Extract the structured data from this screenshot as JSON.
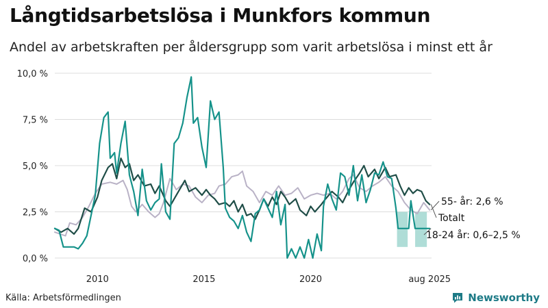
{
  "title": "Långtidsarbetslösa i Munkfors kommun",
  "subtitle": "Andel av arbetskraften per åldersgrupp som varit arbetslösa i minst ett år",
  "source": "Källa: Arbetsförmedlingen",
  "brand": {
    "name": "Newsworthy",
    "icon": "newsworthy-logo-icon"
  },
  "colors": {
    "youth": "#15928a",
    "total": "#1f4d47",
    "older": "#b9b2c6",
    "band": "#a6d9d3",
    "grid": "#dcdcdc",
    "axis_text": "#222222",
    "brand": "#1d7a86"
  },
  "chart_data": {
    "type": "line",
    "x_unit": "year",
    "xlim": [
      2008.0,
      2025.67
    ],
    "ylim": [
      0,
      10
    ],
    "x_ticks": [
      {
        "value": 2010,
        "label": "2010"
      },
      {
        "value": 2015,
        "label": "2015"
      },
      {
        "value": 2020,
        "label": "2020"
      },
      {
        "value": 2025.58,
        "label": "aug 2025"
      }
    ],
    "y_ticks": [
      {
        "value": 0,
        "label": "0,0 %"
      },
      {
        "value": 2.5,
        "label": "2,5 %"
      },
      {
        "value": 5,
        "label": "5,0 %"
      },
      {
        "value": 7.5,
        "label": "7,5 %"
      },
      {
        "value": 10,
        "label": "10,0 %"
      }
    ],
    "grid": true,
    "legend": "direct labels at line ends (right)",
    "series": [
      {
        "key": "older",
        "name": "55- år: 2,6 %",
        "color_key": "older",
        "points": [
          [
            2008.0,
            1.4
          ],
          [
            2008.5,
            1.2
          ],
          [
            2008.7,
            1.9
          ],
          [
            2009.0,
            1.8
          ],
          [
            2009.3,
            2.2
          ],
          [
            2009.6,
            2.8
          ],
          [
            2009.9,
            3.5
          ],
          [
            2010.2,
            4.0
          ],
          [
            2010.6,
            4.1
          ],
          [
            2010.9,
            4.0
          ],
          [
            2011.2,
            4.2
          ],
          [
            2011.4,
            3.7
          ],
          [
            2011.6,
            2.8
          ],
          [
            2011.8,
            2.5
          ],
          [
            2012.1,
            2.9
          ],
          [
            2012.4,
            2.5
          ],
          [
            2012.7,
            2.2
          ],
          [
            2012.9,
            2.4
          ],
          [
            2013.1,
            3.0
          ],
          [
            2013.4,
            4.3
          ],
          [
            2013.7,
            3.7
          ],
          [
            2014.0,
            4.0
          ],
          [
            2014.3,
            3.9
          ],
          [
            2014.6,
            3.3
          ],
          [
            2014.9,
            3.0
          ],
          [
            2015.2,
            3.4
          ],
          [
            2015.5,
            3.5
          ],
          [
            2015.7,
            3.9
          ],
          [
            2016.0,
            4.0
          ],
          [
            2016.3,
            4.4
          ],
          [
            2016.6,
            4.5
          ],
          [
            2016.8,
            4.7
          ],
          [
            2017.0,
            3.9
          ],
          [
            2017.3,
            3.6
          ],
          [
            2017.6,
            3.0
          ],
          [
            2017.9,
            3.6
          ],
          [
            2018.2,
            3.4
          ],
          [
            2018.5,
            3.9
          ],
          [
            2018.8,
            3.4
          ],
          [
            2019.1,
            3.5
          ],
          [
            2019.4,
            3.8
          ],
          [
            2019.7,
            3.2
          ],
          [
            2020.0,
            3.4
          ],
          [
            2020.3,
            3.5
          ],
          [
            2020.6,
            3.4
          ],
          [
            2020.9,
            3.5
          ],
          [
            2021.2,
            3.2
          ],
          [
            2021.5,
            3.6
          ],
          [
            2021.8,
            4.3
          ],
          [
            2022.0,
            4.5
          ],
          [
            2022.3,
            3.8
          ],
          [
            2022.6,
            3.6
          ],
          [
            2022.9,
            3.9
          ],
          [
            2023.2,
            4.1
          ],
          [
            2023.5,
            4.4
          ],
          [
            2023.8,
            3.9
          ],
          [
            2024.1,
            3.6
          ],
          [
            2024.4,
            3.0
          ],
          [
            2024.7,
            2.6
          ],
          [
            2025.0,
            2.4
          ],
          [
            2025.3,
            3.0
          ],
          [
            2025.58,
            2.6
          ]
        ]
      },
      {
        "key": "total",
        "name": "Totalt",
        "color_key": "total",
        "points": [
          [
            2008.0,
            1.6
          ],
          [
            2008.3,
            1.4
          ],
          [
            2008.6,
            1.6
          ],
          [
            2008.9,
            1.3
          ],
          [
            2009.1,
            1.6
          ],
          [
            2009.4,
            2.7
          ],
          [
            2009.7,
            2.5
          ],
          [
            2010.0,
            3.3
          ],
          [
            2010.2,
            4.2
          ],
          [
            2010.5,
            4.9
          ],
          [
            2010.7,
            5.1
          ],
          [
            2010.9,
            4.3
          ],
          [
            2011.1,
            5.4
          ],
          [
            2011.3,
            4.9
          ],
          [
            2011.5,
            5.1
          ],
          [
            2011.7,
            4.2
          ],
          [
            2011.9,
            4.5
          ],
          [
            2012.2,
            3.9
          ],
          [
            2012.5,
            4.0
          ],
          [
            2012.7,
            3.5
          ],
          [
            2012.9,
            3.9
          ],
          [
            2013.2,
            3.1
          ],
          [
            2013.4,
            2.8
          ],
          [
            2013.6,
            3.2
          ],
          [
            2013.9,
            3.8
          ],
          [
            2014.1,
            4.2
          ],
          [
            2014.3,
            3.6
          ],
          [
            2014.6,
            3.8
          ],
          [
            2014.9,
            3.4
          ],
          [
            2015.1,
            3.7
          ],
          [
            2015.3,
            3.4
          ],
          [
            2015.5,
            3.2
          ],
          [
            2015.7,
            2.9
          ],
          [
            2016.0,
            3.0
          ],
          [
            2016.2,
            2.8
          ],
          [
            2016.4,
            3.1
          ],
          [
            2016.6,
            2.5
          ],
          [
            2016.8,
            2.9
          ],
          [
            2017.0,
            2.3
          ],
          [
            2017.2,
            2.4
          ],
          [
            2017.4,
            2.1
          ],
          [
            2017.6,
            2.6
          ],
          [
            2017.8,
            3.2
          ],
          [
            2018.0,
            2.8
          ],
          [
            2018.2,
            3.3
          ],
          [
            2018.4,
            2.9
          ],
          [
            2018.6,
            3.6
          ],
          [
            2018.8,
            3.3
          ],
          [
            2019.0,
            2.9
          ],
          [
            2019.3,
            3.2
          ],
          [
            2019.5,
            2.6
          ],
          [
            2019.8,
            2.3
          ],
          [
            2020.0,
            2.8
          ],
          [
            2020.2,
            2.5
          ],
          [
            2020.5,
            2.9
          ],
          [
            2020.7,
            3.2
          ],
          [
            2021.0,
            3.6
          ],
          [
            2021.3,
            3.3
          ],
          [
            2021.5,
            3.0
          ],
          [
            2021.8,
            3.7
          ],
          [
            2022.0,
            4.1
          ],
          [
            2022.3,
            4.6
          ],
          [
            2022.5,
            5.0
          ],
          [
            2022.7,
            4.4
          ],
          [
            2023.0,
            4.8
          ],
          [
            2023.2,
            4.3
          ],
          [
            2023.5,
            4.9
          ],
          [
            2023.7,
            4.4
          ],
          [
            2024.0,
            4.5
          ],
          [
            2024.2,
            3.9
          ],
          [
            2024.4,
            3.4
          ],
          [
            2024.6,
            3.8
          ],
          [
            2024.8,
            3.5
          ],
          [
            2025.0,
            3.7
          ],
          [
            2025.2,
            3.6
          ],
          [
            2025.4,
            3.1
          ],
          [
            2025.58,
            2.9
          ]
        ]
      },
      {
        "key": "youth",
        "name": "18-24 år: 0,6–2,5 %",
        "color_key": "youth",
        "points": [
          [
            2008.0,
            1.6
          ],
          [
            2008.2,
            1.5
          ],
          [
            2008.4,
            0.6
          ],
          [
            2008.9,
            0.6
          ],
          [
            2009.1,
            0.5
          ],
          [
            2009.3,
            0.8
          ],
          [
            2009.5,
            1.2
          ],
          [
            2009.7,
            2.3
          ],
          [
            2009.9,
            3.4
          ],
          [
            2010.1,
            6.2
          ],
          [
            2010.3,
            7.6
          ],
          [
            2010.5,
            7.9
          ],
          [
            2010.6,
            5.4
          ],
          [
            2010.8,
            5.7
          ],
          [
            2010.9,
            4.6
          ],
          [
            2011.1,
            6.2
          ],
          [
            2011.3,
            7.4
          ],
          [
            2011.5,
            4.5
          ],
          [
            2011.7,
            3.6
          ],
          [
            2011.9,
            2.3
          ],
          [
            2012.1,
            4.8
          ],
          [
            2012.3,
            3.1
          ],
          [
            2012.5,
            2.6
          ],
          [
            2012.7,
            3.0
          ],
          [
            2012.9,
            3.2
          ],
          [
            2013.0,
            5.1
          ],
          [
            2013.2,
            2.5
          ],
          [
            2013.4,
            2.1
          ],
          [
            2013.6,
            6.2
          ],
          [
            2013.8,
            6.5
          ],
          [
            2014.0,
            7.3
          ],
          [
            2014.2,
            8.7
          ],
          [
            2014.4,
            9.8
          ],
          [
            2014.5,
            7.3
          ],
          [
            2014.7,
            7.6
          ],
          [
            2014.9,
            6.0
          ],
          [
            2015.1,
            4.9
          ],
          [
            2015.3,
            8.5
          ],
          [
            2015.5,
            7.5
          ],
          [
            2015.7,
            7.9
          ],
          [
            2015.9,
            4.9
          ],
          [
            2016.0,
            2.7
          ],
          [
            2016.2,
            2.2
          ],
          [
            2016.4,
            2.0
          ],
          [
            2016.6,
            1.6
          ],
          [
            2016.8,
            2.3
          ],
          [
            2017.0,
            1.4
          ],
          [
            2017.2,
            0.9
          ],
          [
            2017.4,
            2.4
          ],
          [
            2017.6,
            2.6
          ],
          [
            2017.8,
            3.2
          ],
          [
            2018.0,
            2.7
          ],
          [
            2018.2,
            2.2
          ],
          [
            2018.4,
            3.6
          ],
          [
            2018.6,
            1.8
          ],
          [
            2018.8,
            2.9
          ],
          [
            2018.9,
            0.0
          ],
          [
            2019.1,
            0.5
          ],
          [
            2019.3,
            0.0
          ],
          [
            2019.5,
            0.6
          ],
          [
            2019.7,
            0.0
          ],
          [
            2019.9,
            1.0
          ],
          [
            2020.1,
            0.0
          ],
          [
            2020.3,
            1.3
          ],
          [
            2020.5,
            0.4
          ],
          [
            2020.6,
            2.8
          ],
          [
            2020.8,
            4.0
          ],
          [
            2021.0,
            3.2
          ],
          [
            2021.2,
            2.6
          ],
          [
            2021.4,
            4.6
          ],
          [
            2021.6,
            4.4
          ],
          [
            2021.8,
            3.4
          ],
          [
            2022.0,
            5.0
          ],
          [
            2022.2,
            3.1
          ],
          [
            2022.4,
            4.5
          ],
          [
            2022.6,
            3.0
          ],
          [
            2022.8,
            3.7
          ],
          [
            2023.0,
            4.6
          ],
          [
            2023.2,
            4.5
          ],
          [
            2023.4,
            5.2
          ],
          [
            2023.6,
            4.4
          ],
          [
            2023.8,
            4.3
          ],
          [
            2024.0,
            2.7
          ],
          [
            2024.1,
            1.6
          ],
          [
            2024.6,
            1.6
          ],
          [
            2024.7,
            3.1
          ],
          [
            2024.9,
            1.6
          ],
          [
            2025.58,
            1.6
          ]
        ]
      }
    ],
    "bands": [
      {
        "series": "youth",
        "x_start": 2024.05,
        "x_end": 2024.55,
        "y_low": 0.6,
        "y_high": 2.5
      },
      {
        "series": "youth",
        "x_start": 2024.9,
        "x_end": 2025.45,
        "y_low": 0.6,
        "y_high": 2.5
      }
    ]
  }
}
